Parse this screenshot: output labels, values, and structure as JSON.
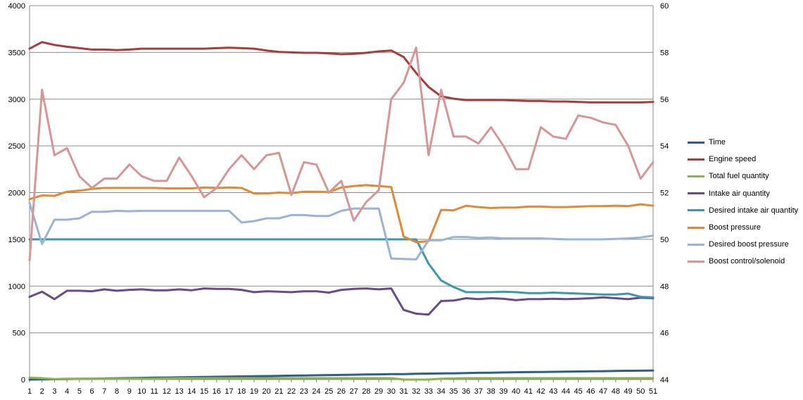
{
  "chart_data": {
    "type": "line",
    "title": "",
    "xlabel": "",
    "ylabel": "",
    "x": [
      1,
      2,
      3,
      4,
      5,
      6,
      7,
      8,
      9,
      10,
      11,
      12,
      13,
      14,
      15,
      16,
      17,
      18,
      19,
      20,
      21,
      22,
      23,
      24,
      25,
      26,
      27,
      28,
      29,
      30,
      31,
      32,
      33,
      34,
      35,
      36,
      37,
      38,
      39,
      40,
      41,
      42,
      43,
      44,
      45,
      46,
      47,
      48,
      49,
      50,
      51
    ],
    "ylim": [
      0,
      4000
    ],
    "y2lim": [
      44,
      60
    ],
    "yticks": [
      0,
      500,
      1000,
      1500,
      2000,
      2500,
      3000,
      3500,
      4000
    ],
    "y2ticks": [
      44,
      46,
      48,
      50,
      52,
      54,
      56,
      58,
      60
    ],
    "grid": true,
    "legend_position": "right",
    "series": [
      {
        "name": "Time",
        "color": "#2E5E8C",
        "axis": "left",
        "values": [
          0,
          2,
          4,
          6,
          8,
          10,
          12,
          14,
          16,
          18,
          20,
          22,
          24,
          26,
          28,
          30,
          32,
          34,
          36,
          38,
          40,
          42,
          44,
          46,
          48,
          50,
          52,
          54,
          56,
          58,
          59,
          62,
          64,
          66,
          67,
          70,
          72,
          74,
          76,
          78,
          80,
          81,
          83,
          85,
          87,
          89,
          90,
          92,
          94,
          95,
          97
        ]
      },
      {
        "name": "Engine speed",
        "color": "#A83C3A",
        "axis": "left",
        "values": [
          3540,
          3610,
          3580,
          3560,
          3545,
          3530,
          3530,
          3525,
          3530,
          3540,
          3540,
          3540,
          3540,
          3540,
          3540,
          3545,
          3550,
          3545,
          3540,
          3520,
          3505,
          3500,
          3495,
          3495,
          3490,
          3480,
          3485,
          3495,
          3510,
          3520,
          3450,
          3280,
          3130,
          3030,
          3005,
          2990,
          2990,
          2990,
          2990,
          2985,
          2980,
          2980,
          2975,
          2975,
          2970,
          2965,
          2965,
          2965,
          2965,
          2965,
          2970
        ]
      },
      {
        "name": "Total fuel quantity",
        "color": "#8DB44C",
        "axis": "left",
        "values": [
          20,
          15,
          5,
          10,
          10,
          10,
          10,
          10,
          10,
          10,
          10,
          12,
          15,
          15,
          15,
          15,
          15,
          15,
          15,
          15,
          15,
          15,
          15,
          15,
          15,
          15,
          15,
          15,
          15,
          15,
          0,
          0,
          0,
          10,
          12,
          15,
          15,
          15,
          15,
          15,
          15,
          15,
          15,
          15,
          15,
          15,
          15,
          15,
          15,
          15,
          15
        ]
      },
      {
        "name": "Intake air quantity",
        "color": "#6A4B8A",
        "axis": "left",
        "values": [
          885,
          940,
          860,
          950,
          950,
          945,
          965,
          950,
          960,
          965,
          955,
          955,
          965,
          955,
          975,
          970,
          970,
          960,
          935,
          945,
          940,
          935,
          945,
          945,
          930,
          960,
          970,
          975,
          965,
          975,
          745,
          705,
          695,
          840,
          845,
          870,
          860,
          870,
          865,
          850,
          860,
          860,
          865,
          860,
          865,
          870,
          880,
          870,
          860,
          875,
          870
        ]
      },
      {
        "name": "Desired intake air quantity",
        "color": "#3C98AE",
        "axis": "left",
        "values": [
          1500,
          1500,
          1500,
          1500,
          1500,
          1500,
          1500,
          1500,
          1500,
          1500,
          1500,
          1500,
          1500,
          1500,
          1500,
          1500,
          1500,
          1500,
          1500,
          1500,
          1500,
          1500,
          1500,
          1500,
          1500,
          1500,
          1500,
          1500,
          1500,
          1500,
          1500,
          1500,
          1240,
          1060,
          990,
          935,
          935,
          935,
          940,
          935,
          925,
          925,
          930,
          925,
          920,
          915,
          910,
          910,
          920,
          885,
          880
        ]
      },
      {
        "name": "Boost pressure",
        "color": "#E08936",
        "axis": "left",
        "values": [
          1930,
          1970,
          1965,
          2010,
          2020,
          2040,
          2050,
          2050,
          2050,
          2050,
          2050,
          2045,
          2045,
          2045,
          2055,
          2050,
          2055,
          2050,
          1990,
          1990,
          2000,
          1995,
          2010,
          2010,
          2005,
          2055,
          2070,
          2080,
          2070,
          2060,
          1530,
          1470,
          1480,
          1815,
          1810,
          1860,
          1845,
          1835,
          1840,
          1840,
          1850,
          1850,
          1845,
          1845,
          1850,
          1855,
          1855,
          1860,
          1855,
          1875,
          1860
        ]
      },
      {
        "name": "Desired boost pressure",
        "color": "#9BB3D8",
        "axis": "left",
        "values": [
          1890,
          1450,
          1710,
          1710,
          1725,
          1795,
          1795,
          1805,
          1800,
          1805,
          1805,
          1805,
          1805,
          1805,
          1805,
          1805,
          1805,
          1680,
          1695,
          1725,
          1725,
          1760,
          1760,
          1750,
          1750,
          1805,
          1830,
          1830,
          1830,
          1295,
          1290,
          1285,
          1490,
          1490,
          1525,
          1525,
          1515,
          1520,
          1510,
          1510,
          1510,
          1510,
          1505,
          1500,
          1500,
          1500,
          1500,
          1505,
          1510,
          1520,
          1540
        ]
      },
      {
        "name": "Boost control/solenoid",
        "color": "#D99594",
        "axis": "right",
        "values": [
          49.1,
          56.4,
          53.6,
          53.9,
          52.7,
          52.2,
          52.6,
          52.6,
          53.2,
          52.7,
          52.5,
          52.5,
          53.5,
          52.7,
          51.8,
          52.2,
          53.0,
          53.6,
          53.0,
          53.6,
          53.7,
          51.9,
          53.3,
          53.2,
          52.0,
          52.5,
          50.8,
          51.6,
          52.1,
          56.0,
          56.7,
          58.2,
          53.6,
          56.4,
          54.4,
          54.4,
          54.1,
          54.8,
          54.0,
          53.0,
          53.0,
          54.8,
          54.4,
          54.3,
          55.3,
          55.2,
          55.0,
          54.9,
          54.0,
          52.6,
          53.3
        ]
      }
    ]
  }
}
